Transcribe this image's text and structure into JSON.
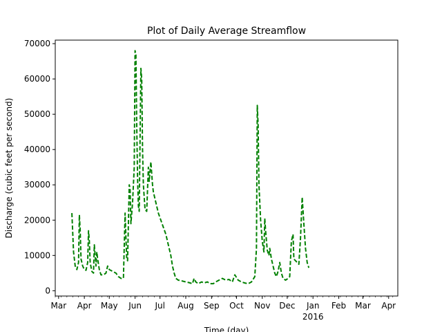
{
  "chart_data": {
    "type": "line",
    "title": "Plot of Daily Average Streamflow",
    "xlabel": "Time (day)",
    "ylabel": "Discharge (cubic feet per second)",
    "xlim": [
      "2015-02-25",
      "2016-04-12"
    ],
    "ylim": [
      -1500,
      71000
    ],
    "x_ticks": [
      {
        "date": "2015-03-01",
        "label": "Mar"
      },
      {
        "date": "2015-04-01",
        "label": "Apr"
      },
      {
        "date": "2015-05-01",
        "label": "May"
      },
      {
        "date": "2015-06-01",
        "label": "Jun"
      },
      {
        "date": "2015-07-01",
        "label": "Jul"
      },
      {
        "date": "2015-08-01",
        "label": "Aug"
      },
      {
        "date": "2015-09-01",
        "label": "Sep"
      },
      {
        "date": "2015-10-01",
        "label": "Oct"
      },
      {
        "date": "2015-11-01",
        "label": "Nov"
      },
      {
        "date": "2015-12-01",
        "label": "Dec"
      },
      {
        "date": "2016-01-01",
        "label": "Jan",
        "sublabel": "2016"
      },
      {
        "date": "2016-02-01",
        "label": "Feb"
      },
      {
        "date": "2016-03-01",
        "label": "Mar"
      },
      {
        "date": "2016-04-01",
        "label": "Apr"
      }
    ],
    "y_ticks": [
      0,
      10000,
      20000,
      30000,
      40000,
      50000,
      60000,
      70000
    ],
    "grid": false,
    "series": [
      {
        "color": "#008000",
        "linestyle": "dashed",
        "points": [
          [
            "2015-03-17",
            22000
          ],
          [
            "2015-03-19",
            11000
          ],
          [
            "2015-03-21",
            7000
          ],
          [
            "2015-03-23",
            6000
          ],
          [
            "2015-03-25",
            8000
          ],
          [
            "2015-03-26",
            21500
          ],
          [
            "2015-03-27",
            17000
          ],
          [
            "2015-03-28",
            9000
          ],
          [
            "2015-03-30",
            7000
          ],
          [
            "2015-04-01",
            6000
          ],
          [
            "2015-04-03",
            5800
          ],
          [
            "2015-04-05",
            8000
          ],
          [
            "2015-04-06",
            17000
          ],
          [
            "2015-04-07",
            14000
          ],
          [
            "2015-04-08",
            8000
          ],
          [
            "2015-04-10",
            5500
          ],
          [
            "2015-04-12",
            5000
          ],
          [
            "2015-04-13",
            13000
          ],
          [
            "2015-04-15",
            7000
          ],
          [
            "2015-04-16",
            11000
          ],
          [
            "2015-04-17",
            9000
          ],
          [
            "2015-04-19",
            6000
          ],
          [
            "2015-04-21",
            4500
          ],
          [
            "2015-04-24",
            4500
          ],
          [
            "2015-04-27",
            5000
          ],
          [
            "2015-04-29",
            7000
          ],
          [
            "2015-05-01",
            6000
          ],
          [
            "2015-05-05",
            5500
          ],
          [
            "2015-05-09",
            5000
          ],
          [
            "2015-05-12",
            4000
          ],
          [
            "2015-05-15",
            3500
          ],
          [
            "2015-05-18",
            3500
          ],
          [
            "2015-05-20",
            22000
          ],
          [
            "2015-05-21",
            15000
          ],
          [
            "2015-05-22",
            9000
          ],
          [
            "2015-05-23",
            8500
          ],
          [
            "2015-05-25",
            30000
          ],
          [
            "2015-05-26",
            29000
          ],
          [
            "2015-05-27",
            19000
          ],
          [
            "2015-05-29",
            25000
          ],
          [
            "2015-05-31",
            35000
          ],
          [
            "2015-06-01",
            68000
          ],
          [
            "2015-06-02",
            67000
          ],
          [
            "2015-06-03",
            47000
          ],
          [
            "2015-06-04",
            32000
          ],
          [
            "2015-06-05",
            24000
          ],
          [
            "2015-06-06",
            22500
          ],
          [
            "2015-06-08",
            63000
          ],
          [
            "2015-06-09",
            60000
          ],
          [
            "2015-06-10",
            40000
          ],
          [
            "2015-06-11",
            30000
          ],
          [
            "2015-06-13",
            23000
          ],
          [
            "2015-06-15",
            22500
          ],
          [
            "2015-06-17",
            35000
          ],
          [
            "2015-06-18",
            31000
          ],
          [
            "2015-06-20",
            36500
          ],
          [
            "2015-06-22",
            30000
          ],
          [
            "2015-06-23",
            28000
          ],
          [
            "2015-06-26",
            25000
          ],
          [
            "2015-06-29",
            22000
          ],
          [
            "2015-07-02",
            20000
          ],
          [
            "2015-07-05",
            18000
          ],
          [
            "2015-07-08",
            16000
          ],
          [
            "2015-07-11",
            13000
          ],
          [
            "2015-07-14",
            10000
          ],
          [
            "2015-07-16",
            7000
          ],
          [
            "2015-07-18",
            5000
          ],
          [
            "2015-07-20",
            3500
          ],
          [
            "2015-07-23",
            3000
          ],
          [
            "2015-07-27",
            2800
          ],
          [
            "2015-08-01",
            2500
          ],
          [
            "2015-08-05",
            2300
          ],
          [
            "2015-08-09",
            2000
          ],
          [
            "2015-08-11",
            3500
          ],
          [
            "2015-08-13",
            2500
          ],
          [
            "2015-08-16",
            2000
          ],
          [
            "2015-08-20",
            2500
          ],
          [
            "2015-08-23",
            2200
          ],
          [
            "2015-08-27",
            2500
          ],
          [
            "2015-08-30",
            2000
          ],
          [
            "2015-09-03",
            2000
          ],
          [
            "2015-09-06",
            2500
          ],
          [
            "2015-09-10",
            3000
          ],
          [
            "2015-09-14",
            3500
          ],
          [
            "2015-09-18",
            3000
          ],
          [
            "2015-09-22",
            3200
          ],
          [
            "2015-09-26",
            2500
          ],
          [
            "2015-09-29",
            4500
          ],
          [
            "2015-10-03",
            3000
          ],
          [
            "2015-10-07",
            2500
          ],
          [
            "2015-10-11",
            2200
          ],
          [
            "2015-10-15",
            2000
          ],
          [
            "2015-10-19",
            2500
          ],
          [
            "2015-10-23",
            4000
          ],
          [
            "2015-10-25",
            12000
          ],
          [
            "2015-10-26",
            52500
          ],
          [
            "2015-10-27",
            47000
          ],
          [
            "2015-10-28",
            30000
          ],
          [
            "2015-10-30",
            20000
          ],
          [
            "2015-11-01",
            14000
          ],
          [
            "2015-11-03",
            11000
          ],
          [
            "2015-11-04",
            20500
          ],
          [
            "2015-11-05",
            17000
          ],
          [
            "2015-11-07",
            11500
          ],
          [
            "2015-11-09",
            10000
          ],
          [
            "2015-11-10",
            12000
          ],
          [
            "2015-11-12",
            9000
          ],
          [
            "2015-11-14",
            7000
          ],
          [
            "2015-11-16",
            5000
          ],
          [
            "2015-11-18",
            4000
          ],
          [
            "2015-11-20",
            5500
          ],
          [
            "2015-11-22",
            8000
          ],
          [
            "2015-11-24",
            5000
          ],
          [
            "2015-11-26",
            3500
          ],
          [
            "2015-11-29",
            3000
          ],
          [
            "2015-12-02",
            3500
          ],
          [
            "2015-12-04",
            4000
          ],
          [
            "2015-12-06",
            14000
          ],
          [
            "2015-12-08",
            16000
          ],
          [
            "2015-12-09",
            9000
          ],
          [
            "2015-12-11",
            8500
          ],
          [
            "2015-12-13",
            8000
          ],
          [
            "2015-12-15",
            7500
          ],
          [
            "2015-12-17",
            15000
          ],
          [
            "2015-12-19",
            26500
          ],
          [
            "2015-12-21",
            19000
          ],
          [
            "2015-12-23",
            12000
          ],
          [
            "2015-12-25",
            8000
          ],
          [
            "2015-12-27",
            6500
          ]
        ]
      }
    ]
  }
}
